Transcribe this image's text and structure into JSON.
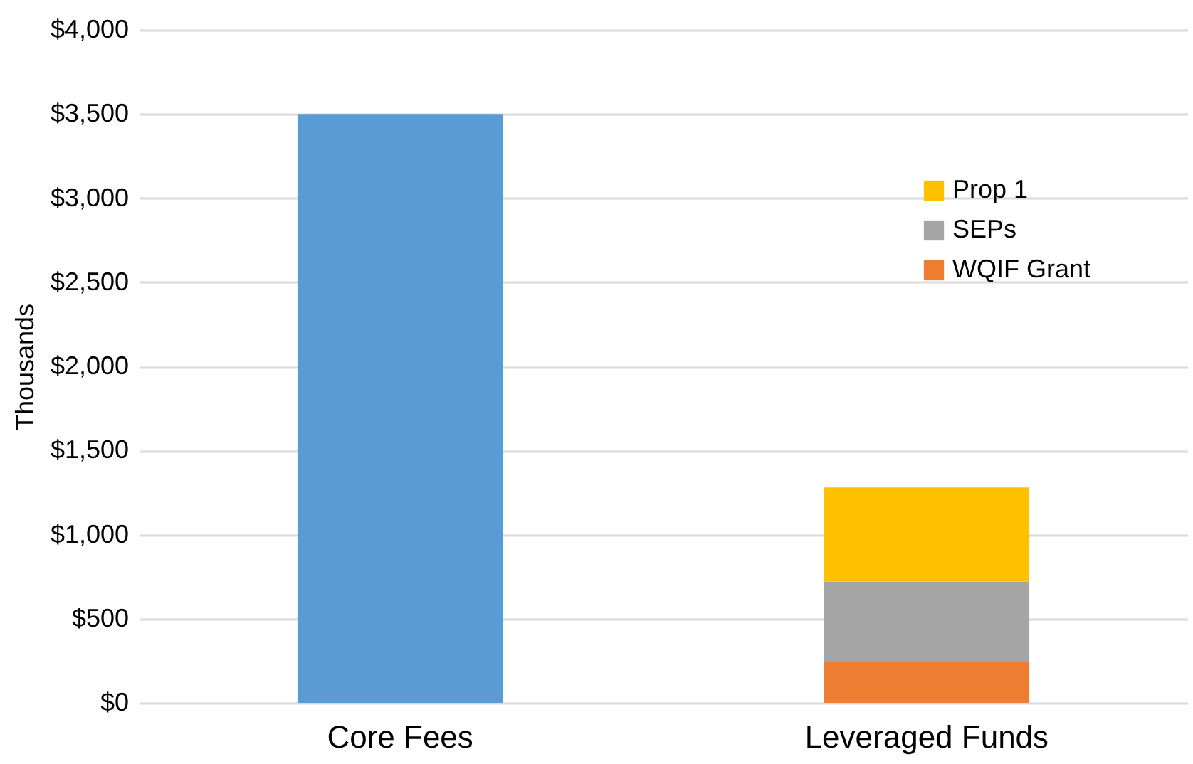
{
  "chart_data": {
    "type": "bar",
    "stacked": true,
    "ylabel": "Thousands",
    "categories": [
      "Core Fees",
      "Leveraged Funds"
    ],
    "series": [
      {
        "color": "#5b9bd5",
        "values": [
          3500,
          null
        ]
      },
      {
        "name": "WQIF Grant",
        "color": "#ed7d31",
        "values": [
          null,
          245
        ]
      },
      {
        "name": "SEPs",
        "color": "#a5a5a5",
        "values": [
          null,
          475
        ]
      },
      {
        "name": "Prop 1",
        "color": "#ffc000",
        "values": [
          null,
          560
        ]
      }
    ],
    "ylim": [
      0,
      4000
    ],
    "yticks": [
      {
        "value": 0,
        "label": "$0"
      },
      {
        "value": 500,
        "label": "$500"
      },
      {
        "value": 1000,
        "label": "$1,000"
      },
      {
        "value": 1500,
        "label": "$1,500"
      },
      {
        "value": 2000,
        "label": "$2,000"
      },
      {
        "value": 2500,
        "label": "$2,500"
      },
      {
        "value": 3000,
        "label": "$3,000"
      },
      {
        "value": 3500,
        "label": "$3,500"
      },
      {
        "value": 4000,
        "label": "$4,000"
      }
    ],
    "grid": "y",
    "legend": "top right"
  }
}
